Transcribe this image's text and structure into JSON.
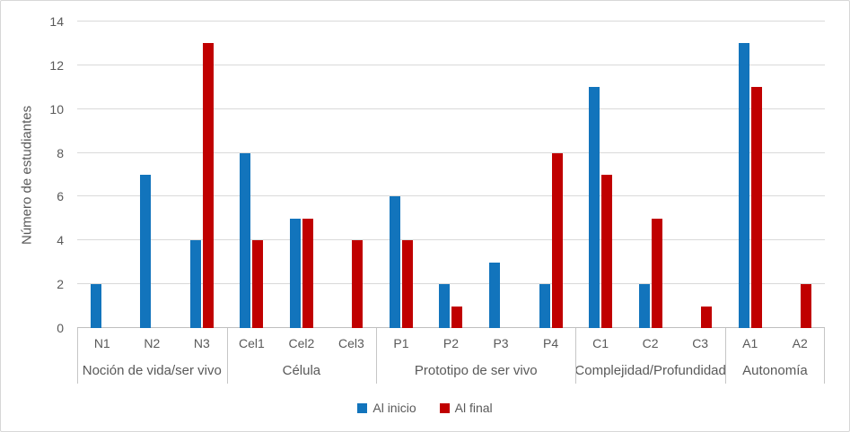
{
  "figure": {
    "background": "#ffffff",
    "border_color": "#d7d7d7",
    "text_color": "#595959",
    "gridline_color": "#d9d9d9",
    "axis_line_color": "#bfbfbf"
  },
  "chart_data": {
    "type": "bar",
    "title": "",
    "xlabel": "",
    "ylabel": "Número de estudiantes",
    "ylim": [
      0,
      14
    ],
    "yticks": [
      0,
      2,
      4,
      6,
      8,
      10,
      12,
      14
    ],
    "grid": "horizontal",
    "legend_position": "bottom",
    "categories": [
      "N1",
      "N2",
      "N3",
      "Cel1",
      "Cel2",
      "Cel3",
      "P1",
      "P2",
      "P3",
      "P4",
      "C1",
      "C2",
      "C3",
      "A1",
      "A2"
    ],
    "groups": [
      {
        "label": "Noción de vida/ser vivo",
        "count": 3
      },
      {
        "label": "Célula",
        "count": 3
      },
      {
        "label": "Prototipo de ser vivo",
        "count": 4
      },
      {
        "label": "Complejidad/Profundidad",
        "count": 3
      },
      {
        "label": "Autonomía",
        "count": 2
      }
    ],
    "series": [
      {
        "name": "Al inicio",
        "color": "#1274BC",
        "values": [
          2,
          7,
          4,
          8,
          5,
          0,
          6,
          2,
          3,
          2,
          11,
          2,
          0,
          13,
          0
        ]
      },
      {
        "name": "Al final",
        "color": "#C00000",
        "values": [
          0,
          0,
          13,
          4,
          5,
          4,
          4,
          1,
          0,
          8,
          7,
          5,
          1,
          11,
          2
        ]
      }
    ]
  }
}
